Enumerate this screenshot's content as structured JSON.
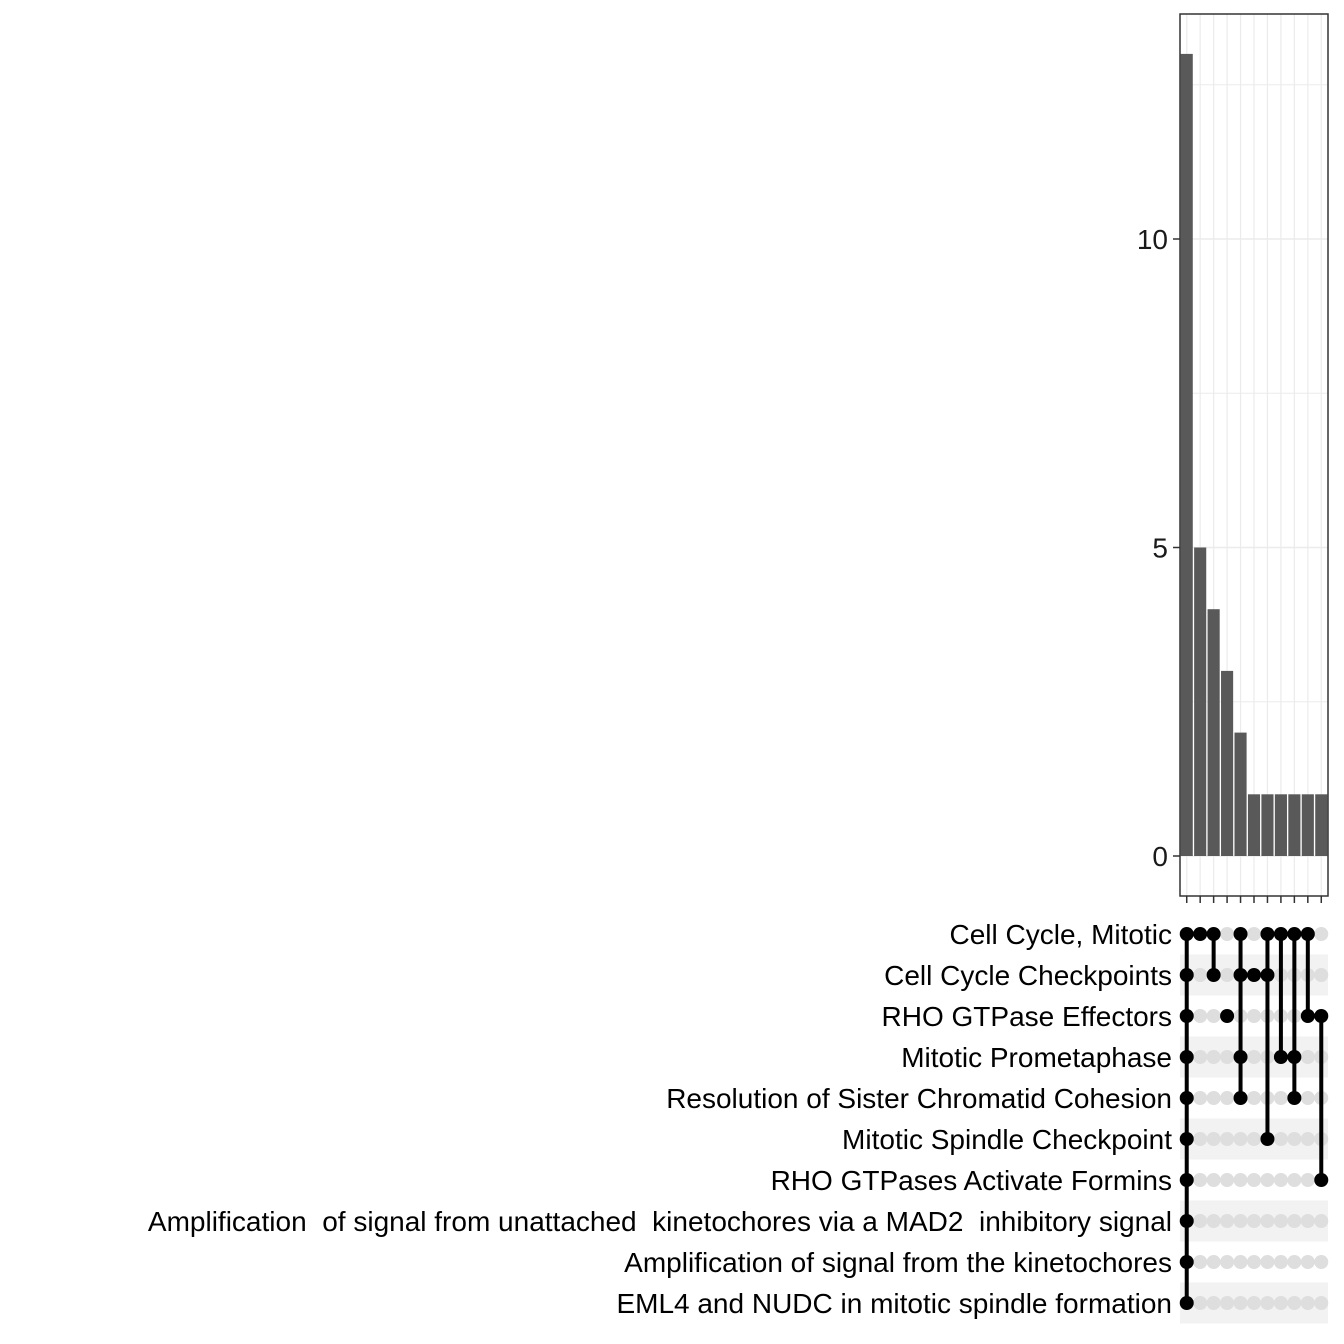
{
  "chart_data": {
    "type": "bar",
    "subtype": "upset",
    "title": "",
    "xlabel": "",
    "ylabel": "",
    "ylim": [
      0,
      13.5
    ],
    "y_ticks": [
      0,
      5,
      10
    ],
    "y_tick_labels": [
      "0",
      "5",
      "10"
    ],
    "grid": true,
    "colors": {
      "bar": "#595959",
      "dot_active": "#000000",
      "dot_inactive": "#dedede",
      "stripe": "#f2f2f2",
      "grid": "#ebebeb",
      "panel_border": "#333333"
    },
    "sets": [
      "Cell Cycle, Mitotic",
      "Cell Cycle Checkpoints",
      "RHO GTPase Effectors",
      "Mitotic Prometaphase",
      "Resolution of Sister Chromatid Cohesion",
      "Mitotic Spindle Checkpoint",
      "RHO GTPases Activate Formins",
      "Amplification  of signal from unattached  kinetochores via a MAD2  inhibitory signal",
      "Amplification of signal from the kinetochores",
      "EML4 and NUDC in mitotic spindle formation"
    ],
    "intersections": [
      {
        "size": 13,
        "members": [
          0,
          1,
          2,
          3,
          4,
          5,
          6,
          7,
          8,
          9
        ]
      },
      {
        "size": 5,
        "members": [
          0
        ]
      },
      {
        "size": 4,
        "members": [
          0,
          1
        ]
      },
      {
        "size": 3,
        "members": [
          2
        ]
      },
      {
        "size": 2,
        "members": [
          0,
          1,
          3,
          4
        ]
      },
      {
        "size": 1,
        "members": [
          1
        ]
      },
      {
        "size": 1,
        "members": [
          0,
          1,
          5
        ]
      },
      {
        "size": 1,
        "members": [
          0,
          3
        ]
      },
      {
        "size": 1,
        "members": [
          0,
          3,
          4
        ]
      },
      {
        "size": 1,
        "members": [
          0,
          2
        ]
      },
      {
        "size": 1,
        "members": [
          2,
          6
        ]
      }
    ]
  }
}
